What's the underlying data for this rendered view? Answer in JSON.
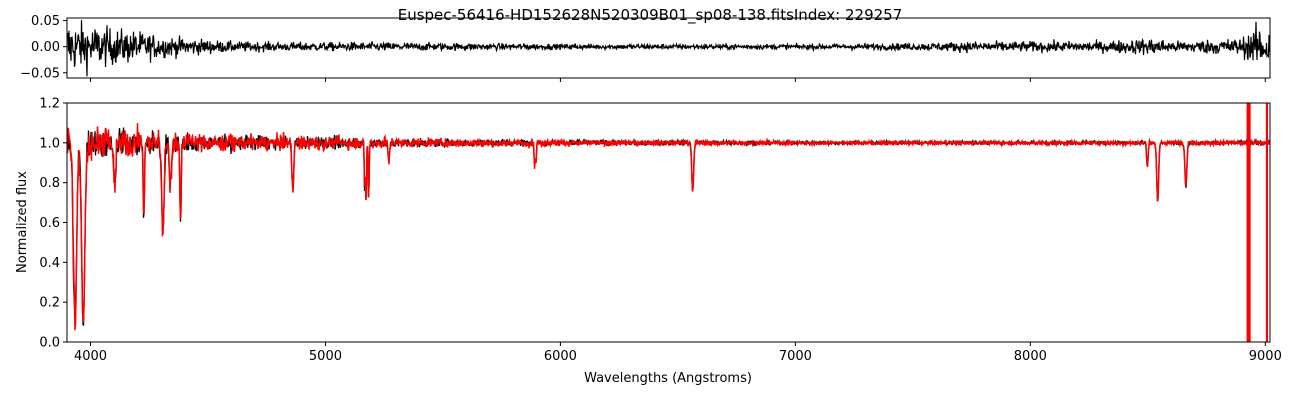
{
  "chart_data": [
    {
      "type": "line",
      "panel": "residuals",
      "title": "Euspec-56416-HD152628N520309B01_sp08-138.fitsIndex: 229257",
      "xlabel": "",
      "ylabel": "",
      "xlim": [
        3900,
        9020
      ],
      "ylim": [
        -0.06,
        0.055
      ],
      "yticks": [
        0.05,
        0.0,
        -0.05
      ],
      "ytick_labels": [
        "0.05",
        "0.00",
        "−0.05"
      ],
      "grid": false,
      "series": [
        {
          "color": "#000000",
          "x": [
            3900,
            3950,
            4000,
            4050,
            4100,
            4150,
            4200,
            4300,
            4400,
            4500,
            4600,
            4800,
            5000,
            5200,
            5400,
            5600,
            6000,
            6500,
            7000,
            7500,
            7650,
            7700,
            8000,
            8300,
            8540,
            8600,
            8900,
            8950,
            9000
          ],
          "amplitude": [
            0.06,
            0.055,
            0.05,
            0.045,
            0.04,
            0.038,
            0.035,
            0.025,
            0.02,
            0.016,
            0.012,
            0.01,
            0.01,
            0.01,
            0.009,
            0.008,
            0.006,
            0.006,
            0.006,
            0.008,
            0.01,
            0.012,
            0.012,
            0.012,
            0.02,
            0.012,
            0.02,
            0.04,
            0.05
          ]
        }
      ]
    },
    {
      "type": "line",
      "panel": "spectrum",
      "title": "",
      "xlabel": "Wavelengths (Angstroms)",
      "ylabel": "Normalized flux",
      "xlim": [
        3900,
        9020
      ],
      "ylim": [
        0.0,
        1.2
      ],
      "xticks": [
        4000,
        5000,
        6000,
        7000,
        8000,
        9000
      ],
      "yticks": [
        0.0,
        0.2,
        0.4,
        0.6,
        0.8,
        1.0,
        1.2
      ],
      "ytick_labels": [
        "0.0",
        "0.2",
        "0.4",
        "0.6",
        "0.8",
        "1.0",
        "1.2"
      ],
      "grid": false,
      "continuum": 1.0,
      "series": [
        {
          "color": "#000000"
        },
        {
          "color": "#ff0000"
        }
      ],
      "absorption_lines": [
        {
          "x": 3934,
          "depth": 0.9,
          "width": 7
        },
        {
          "x": 3969,
          "depth": 0.88,
          "width": 7
        },
        {
          "x": 4102,
          "depth": 0.2,
          "width": 5
        },
        {
          "x": 4227,
          "depth": 0.35,
          "width": 3
        },
        {
          "x": 4308,
          "depth": 0.45,
          "width": 5
        },
        {
          "x": 4340,
          "depth": 0.2,
          "width": 5
        },
        {
          "x": 4383,
          "depth": 0.38,
          "width": 3
        },
        {
          "x": 4861,
          "depth": 0.22,
          "width": 4
        },
        {
          "x": 5167,
          "depth": 0.25,
          "width": 2
        },
        {
          "x": 5173,
          "depth": 0.28,
          "width": 2
        },
        {
          "x": 5184,
          "depth": 0.28,
          "width": 2
        },
        {
          "x": 5270,
          "depth": 0.1,
          "width": 3
        },
        {
          "x": 5890,
          "depth": 0.12,
          "width": 2
        },
        {
          "x": 5896,
          "depth": 0.1,
          "width": 2
        },
        {
          "x": 6563,
          "depth": 0.24,
          "width": 4
        },
        {
          "x": 8498,
          "depth": 0.12,
          "width": 3
        },
        {
          "x": 8542,
          "depth": 0.3,
          "width": 4
        },
        {
          "x": 8662,
          "depth": 0.22,
          "width": 4
        }
      ],
      "noise_amplitude": [
        {
          "x": 3900,
          "a": 0.12
        },
        {
          "x": 4000,
          "a": 0.1
        },
        {
          "x": 4200,
          "a": 0.09
        },
        {
          "x": 4500,
          "a": 0.05
        },
        {
          "x": 5000,
          "a": 0.04
        },
        {
          "x": 5500,
          "a": 0.025
        },
        {
          "x": 6000,
          "a": 0.02
        },
        {
          "x": 7000,
          "a": 0.012
        },
        {
          "x": 8000,
          "a": 0.012
        },
        {
          "x": 8900,
          "a": 0.015
        }
      ],
      "red_spikes_x": [
        8925,
        8933,
        9007
      ]
    }
  ]
}
